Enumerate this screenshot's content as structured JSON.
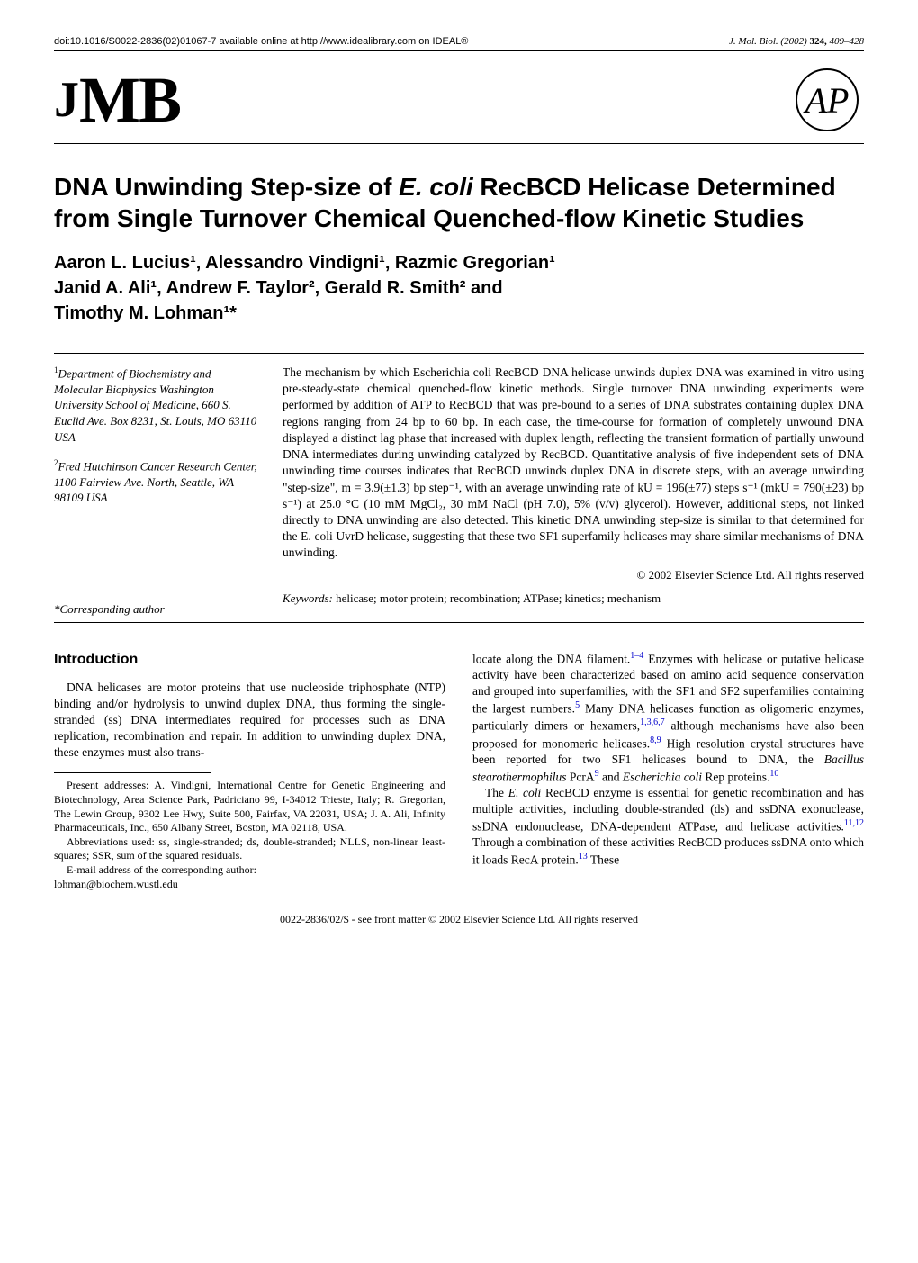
{
  "header": {
    "doi": "doi:10.1016/S0022-2836(02)01067-7 available online at http://www.idealibrary.com on IDEAL®",
    "journal_name": "J. Mol. Biol.",
    "year": "(2002)",
    "volume": "324,",
    "pages": "409–428"
  },
  "logos": {
    "jmb_j": "J",
    "jmb_mb": "MB",
    "ap": "AP"
  },
  "title": {
    "part1": "DNA Unwinding Step-size of ",
    "species": "E. coli",
    "part2": " RecBCD Helicase Determined from Single Turnover Chemical Quenched-flow Kinetic Studies"
  },
  "authors_line1": "Aaron L. Lucius¹, Alessandro Vindigni¹, Razmic Gregorian¹",
  "authors_line2": "Janid A. Ali¹, Andrew F. Taylor², Gerald R. Smith² and",
  "authors_line3": "Timothy M. Lohman¹*",
  "affiliations": {
    "a1_sup": "1",
    "a1_text": "Department of Biochemistry and Molecular Biophysics Washington University School of Medicine, 660 S. Euclid Ave. Box 8231, St. Louis, MO 63110 USA",
    "a2_sup": "2",
    "a2_text": "Fred Hutchinson Cancer Research Center, 1100 Fairview Ave. North, Seattle, WA 98109 USA"
  },
  "abstract": "The mechanism by which Escherichia coli RecBCD DNA helicase unwinds duplex DNA was examined in vitro using pre-steady-state chemical quenched-flow kinetic methods. Single turnover DNA unwinding experiments were performed by addition of ATP to RecBCD that was pre-bound to a series of DNA substrates containing duplex DNA regions ranging from 24 bp to 60 bp. In each case, the time-course for formation of completely unwound DNA displayed a distinct lag phase that increased with duplex length, reflecting the transient formation of partially unwound DNA intermediates during unwinding catalyzed by RecBCD. Quantitative analysis of five independent sets of DNA unwinding time courses indicates that RecBCD unwinds duplex DNA in discrete steps, with an average unwinding \"step-size\", m = 3.9(±1.3) bp step⁻¹, with an average unwinding rate of kU = 196(±77) steps s⁻¹ (mkU = 790(±23) bp s⁻¹) at 25.0 °C (10 mM MgCl₂, 30 mM NaCl (pH 7.0), 5% (v/v) glycerol). However, additional steps, not linked directly to DNA unwinding are also detected. This kinetic DNA unwinding step-size is similar to that determined for the E. coli UvrD helicase, suggesting that these two SF1 superfamily helicases may share similar mechanisms of DNA unwinding.",
  "copyright": "© 2002 Elsevier Science Ltd. All rights reserved",
  "corresponding": "*Corresponding author",
  "keywords_label": "Keywords:",
  "keywords_text": " helicase; motor protein; recombination; ATPase; kinetics; mechanism",
  "intro_heading": "Introduction",
  "intro_para": "DNA helicases are motor proteins that use nucleoside triphosphate (NTP) binding and/or hydrolysis to unwind duplex DNA, thus forming the single-stranded (ss) DNA intermediates required for processes such as DNA replication, recombination and repair. In addition to unwinding duplex DNA, these enzymes must also trans-",
  "footnotes": {
    "addresses": "Present addresses: A. Vindigni, International Centre for Genetic Engineering and Biotechnology, Area Science Park, Padriciano 99, I-34012 Trieste, Italy; R. Gregorian, The Lewin Group, 9302 Lee Hwy, Suite 500, Fairfax, VA 22031, USA; J. A. Ali, Infinity Pharmaceuticals, Inc., 650 Albany Street, Boston, MA 02118, USA.",
    "abbrev": "Abbreviations used: ss, single-stranded; ds, double-stranded; NLLS, non-linear least-squares; SSR, sum of the squared residuals.",
    "email_label": "E-mail address of the corresponding author:",
    "email": "lohman@biochem.wustl.edu"
  },
  "col2": {
    "para1_a": "locate along the DNA filament.",
    "ref1": "1–4",
    "para1_b": " Enzymes with helicase or putative helicase activity have been characterized based on amino acid sequence conservation and grouped into superfamilies, with the SF1 and SF2 superfamilies containing the largest numbers.",
    "ref2": "5",
    "para1_c": " Many DNA helicases function as oligomeric enzymes, particularly dimers or hexamers,",
    "ref3": "1,3,6,7",
    "para1_d": " although mechanisms have also been proposed for monomeric helicases.",
    "ref4": "8,9",
    "para1_e": " High resolution crystal structures have been reported for two SF1 helicases bound to DNA, the ",
    "species1": "Bacillus stearothermophilus",
    "para1_f": " PcrA",
    "ref5": "9",
    "para1_g": " and ",
    "species2": "Escherichia coli",
    "para1_h": " Rep proteins.",
    "ref6": "10",
    "para2_a": "The ",
    "species3": "E. coli",
    "para2_b": " RecBCD enzyme is essential for genetic recombination and has multiple activities, including double-stranded (ds) and ssDNA exonuclease, ssDNA endonuclease, DNA-dependent ATPase, and helicase activities.",
    "ref7": "11,12",
    "para2_c": " Through a combination of these activities RecBCD produces ssDNA onto which it loads RecA protein.",
    "ref8": "13",
    "para2_d": " These"
  },
  "footer": "0022-2836/02/$ - see front matter  © 2002 Elsevier Science Ltd. All rights reserved",
  "colors": {
    "text": "#000000",
    "link": "#0000cc",
    "background": "#ffffff"
  },
  "typography": {
    "body_pt": 13.5,
    "title_pt": 28,
    "authors_pt": 20,
    "footnote_pt": 12,
    "header_pt": 11
  }
}
